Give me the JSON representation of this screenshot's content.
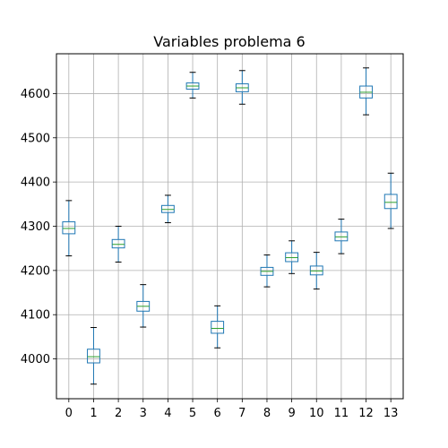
{
  "chart_data": {
    "type": "box",
    "title": "Variables problema 6",
    "xlabel": "",
    "ylabel": "",
    "categories": [
      "0",
      "1",
      "2",
      "3",
      "4",
      "5",
      "6",
      "7",
      "8",
      "9",
      "10",
      "11",
      "12",
      "13"
    ],
    "ylim": [
      3910,
      4690
    ],
    "yticks": [
      4000,
      4100,
      4200,
      4300,
      4400,
      4500,
      4600
    ],
    "grid": true,
    "boxes": [
      {
        "label": "0",
        "min": 4233,
        "q1": 4283,
        "median": 4295,
        "q3": 4310,
        "max": 4358
      },
      {
        "label": "1",
        "min": 3943,
        "q1": 3991,
        "median": 4005,
        "q3": 4022,
        "max": 4071
      },
      {
        "label": "2",
        "min": 4219,
        "q1": 4251,
        "median": 4259,
        "q3": 4270,
        "max": 4300
      },
      {
        "label": "3",
        "min": 4072,
        "q1": 4108,
        "median": 4119,
        "q3": 4130,
        "max": 4168
      },
      {
        "label": "4",
        "min": 4308,
        "q1": 4331,
        "median": 4338,
        "q3": 4347,
        "max": 4370
      },
      {
        "label": "5",
        "min": 4590,
        "q1": 4610,
        "median": 4617,
        "q3": 4624,
        "max": 4648
      },
      {
        "label": "6",
        "min": 4025,
        "q1": 4058,
        "median": 4069,
        "q3": 4085,
        "max": 4120
      },
      {
        "label": "7",
        "min": 4576,
        "q1": 4604,
        "median": 4613,
        "q3": 4622,
        "max": 4652
      },
      {
        "label": "8",
        "min": 4163,
        "q1": 4189,
        "median": 4198,
        "q3": 4207,
        "max": 4235
      },
      {
        "label": "9",
        "min": 4193,
        "q1": 4220,
        "median": 4229,
        "q3": 4240,
        "max": 4267
      },
      {
        "label": "10",
        "min": 4158,
        "q1": 4190,
        "median": 4199,
        "q3": 4210,
        "max": 4241
      },
      {
        "label": "11",
        "min": 4238,
        "q1": 4267,
        "median": 4276,
        "q3": 4287,
        "max": 4316
      },
      {
        "label": "12",
        "min": 4552,
        "q1": 4590,
        "median": 4603,
        "q3": 4617,
        "max": 4658
      },
      {
        "label": "13",
        "min": 4295,
        "q1": 4340,
        "median": 4354,
        "q3": 4372,
        "max": 4420
      }
    ],
    "colors": {
      "box": "#1f77b4",
      "median": "#2ca02c",
      "cap": "#000000",
      "grid": "#b0b0b0"
    }
  }
}
